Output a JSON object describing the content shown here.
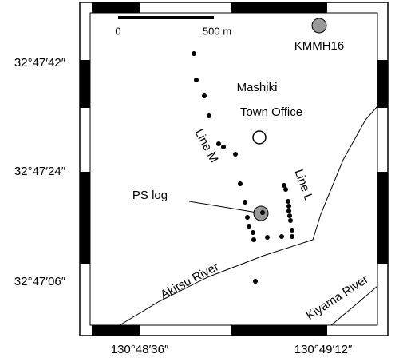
{
  "latitude_labels": [
    "32°47′42″",
    "32°47′24″",
    "32°47′06″"
  ],
  "longitude_labels": [
    "130°48′36″",
    "130°49′12″"
  ],
  "scale_bar": {
    "start": "0",
    "end": "500 m"
  },
  "station": "KMMH16",
  "office": {
    "line1": "Mashiki",
    "line2": "Town Office"
  },
  "lines": {
    "m": "Line M",
    "l": "Line L"
  },
  "ps_log": "PS log",
  "rivers": {
    "akitsu": "Akitsu River",
    "kiyama": "Kiyama River"
  }
}
